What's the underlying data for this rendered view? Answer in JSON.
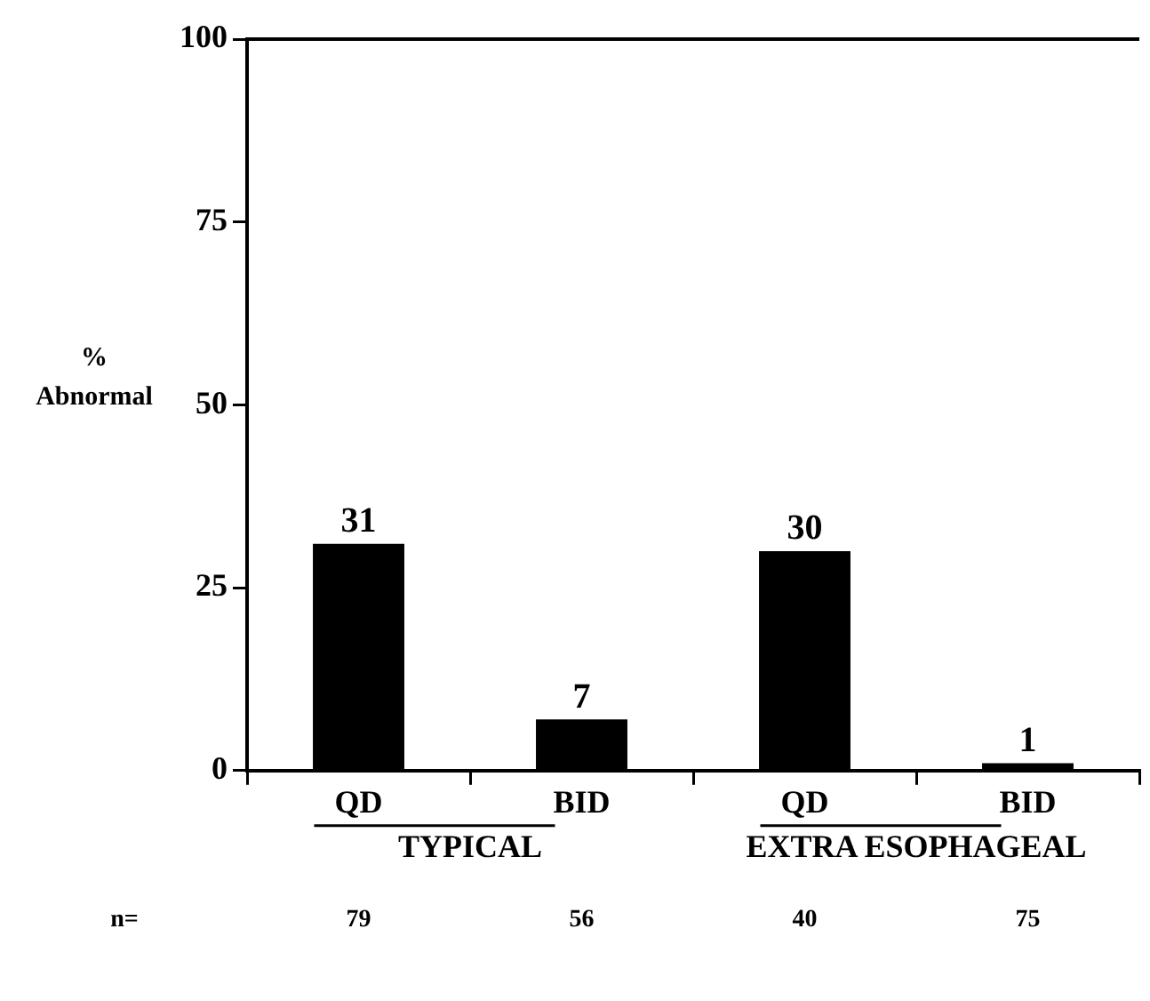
{
  "chart_data": {
    "type": "bar",
    "ylabel": "% Abnormal",
    "categories": [
      "QD",
      "BID",
      "QD",
      "BID"
    ],
    "values": [
      31,
      7,
      30,
      1
    ],
    "color": "#000000",
    "ylim": [
      0,
      100
    ],
    "yticks": [
      0,
      25,
      50,
      75,
      100
    ],
    "grid": false,
    "legend": false,
    "data_labels": true,
    "annotations": [
      "TYPICAL",
      "EXTRA ESOPHAGEAL",
      "n=",
      "79",
      "56",
      "40",
      "75"
    ]
  }
}
